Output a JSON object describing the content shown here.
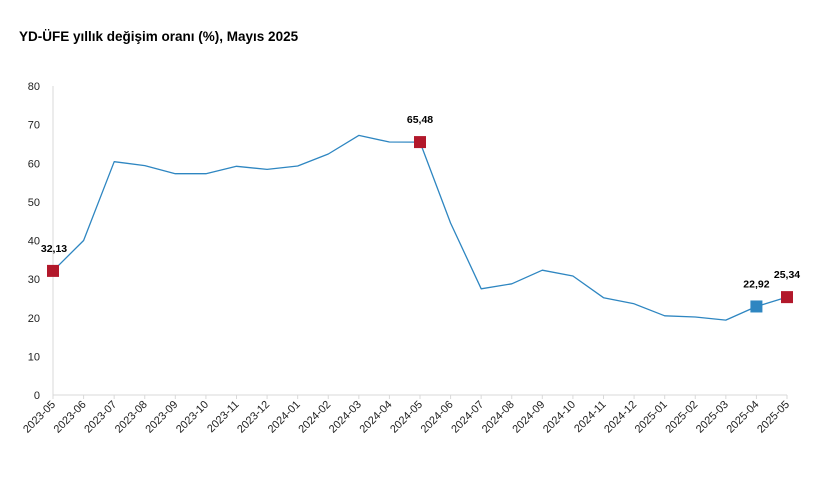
{
  "chart_data": {
    "type": "line",
    "title": "YD-ÜFE yıllık değişim oranı (%), Mayıs 2025",
    "xlabel": "",
    "ylabel": "",
    "ylim": [
      0,
      80
    ],
    "yticks": [
      0,
      10,
      20,
      30,
      40,
      50,
      60,
      70,
      80
    ],
    "grid": false,
    "categories": [
      "2023-05",
      "2023-06",
      "2023-07",
      "2023-08",
      "2023-09",
      "2023-10",
      "2023-11",
      "2023-12",
      "2024-01",
      "2024-02",
      "2024-03",
      "2024-04",
      "2024-05",
      "2024-06",
      "2024-07",
      "2024-08",
      "2024-09",
      "2024-10",
      "2024-11",
      "2024-12",
      "2025-01",
      "2025-02",
      "2025-03",
      "2025-04",
      "2025-05"
    ],
    "series": [
      {
        "name": "YD-ÜFE yıllık değişim oranı (%)",
        "color": "#2e86c1",
        "values": [
          32.13,
          40.0,
          60.4,
          59.4,
          57.3,
          57.3,
          59.2,
          58.4,
          59.3,
          62.4,
          67.2,
          65.5,
          65.48,
          44.5,
          27.5,
          28.8,
          32.3,
          30.8,
          25.2,
          23.6,
          20.5,
          20.2,
          19.4,
          22.92,
          25.34
        ]
      }
    ],
    "annotations": [
      {
        "index": 0,
        "label": "32,13",
        "color": "#b2182b"
      },
      {
        "index": 12,
        "label": "65,48",
        "color": "#b2182b"
      },
      {
        "index": 23,
        "label": "22,92",
        "color": "#2e86c1"
      },
      {
        "index": 24,
        "label": "25,34",
        "color": "#b2182b"
      }
    ]
  }
}
